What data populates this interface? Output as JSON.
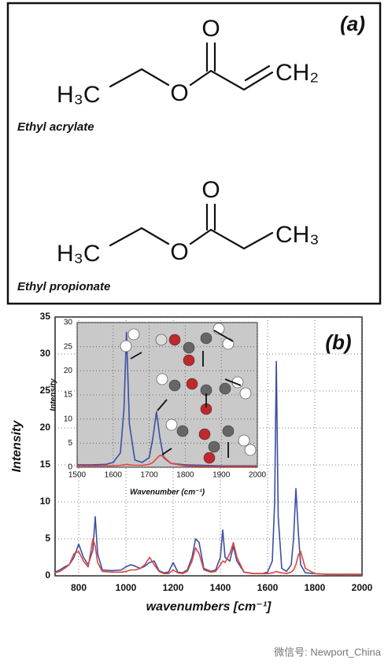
{
  "panel_a": {
    "label": "(a)",
    "molecules": [
      {
        "left": "H₃C",
        "ester_oxygen": "O",
        "carbonyl_oxygen": "O",
        "right": "CH₂",
        "name": "Ethyl acrylate"
      },
      {
        "left": "H₃C",
        "ester_oxygen": "O",
        "carbonyl_oxygen": "O",
        "right": "CH₃",
        "name": "Ethyl propionate"
      }
    ]
  },
  "chart_data": [
    {
      "type": "line",
      "panel_label": "(b)",
      "x_label": "wavenumbers [cm⁻¹]",
      "y_label": "Intensity",
      "x": [
        700,
        720,
        740,
        760,
        780,
        800,
        820,
        840,
        860,
        870,
        880,
        900,
        940,
        980,
        1000,
        1020,
        1040,
        1060,
        1080,
        1100,
        1120,
        1140,
        1160,
        1180,
        1200,
        1220,
        1240,
        1260,
        1280,
        1295,
        1310,
        1330,
        1360,
        1380,
        1400,
        1410,
        1420,
        1440,
        1455,
        1470,
        1500,
        1540,
        1580,
        1600,
        1620,
        1630,
        1637,
        1645,
        1660,
        1680,
        1700,
        1710,
        1720,
        1730,
        1740,
        1760,
        1800,
        1850,
        1900,
        1950,
        2000
      ],
      "series": [
        {
          "color": "#3b4fa3",
          "values": [
            0.5,
            0.8,
            1.2,
            1.5,
            2.5,
            4.3,
            2.5,
            1.5,
            3.5,
            8,
            3,
            0.8,
            0.7,
            0.8,
            1.2,
            1.5,
            1.3,
            1.0,
            1.3,
            1.8,
            2.0,
            0.7,
            0.4,
            0.5,
            1.8,
            0.5,
            0.4,
            0.8,
            2.5,
            5,
            4.5,
            1.0,
            0.6,
            0.8,
            2.5,
            6.2,
            2.5,
            2.0,
            4.0,
            2.0,
            0.5,
            0.3,
            0.3,
            0.5,
            2,
            10,
            29,
            8,
            1,
            0.6,
            1.5,
            5,
            11.8,
            6,
            1.5,
            0.4,
            0.3,
            0.2,
            0.2,
            0.2,
            0.2
          ]
        },
        {
          "color": "#e0453c",
          "values": [
            0.4,
            0.6,
            1.0,
            1.5,
            3.0,
            3.3,
            2.0,
            1.2,
            5.0,
            4.0,
            1.8,
            0.6,
            0.5,
            0.5,
            0.6,
            0.8,
            0.8,
            1.0,
            1.5,
            2.5,
            1.5,
            0.6,
            0.3,
            0.3,
            0.8,
            0.4,
            0.3,
            0.6,
            2.0,
            3.8,
            3.0,
            0.8,
            0.5,
            0.6,
            1.5,
            2.0,
            1.8,
            3.0,
            4.5,
            2.5,
            0.5,
            0.3,
            0.3,
            0.3,
            0.4,
            0.5,
            0.6,
            0.5,
            0.4,
            0.3,
            0.5,
            0.8,
            1.5,
            2.8,
            3.3,
            1.0,
            0.3,
            0.2,
            0.2,
            0.2,
            0.2
          ]
        }
      ],
      "xlim": [
        700,
        2000
      ],
      "xticks": [
        800,
        1000,
        1200,
        1400,
        1600,
        1800,
        2000
      ],
      "ylim": [
        0,
        35
      ],
      "yticks": [
        0,
        5,
        10,
        15,
        20,
        25,
        30,
        35
      ],
      "grid": true
    },
    {
      "type": "line",
      "x_label": "Wavenumber (cm⁻¹)",
      "y_label": "Intensity",
      "x": [
        1500,
        1540,
        1580,
        1600,
        1620,
        1630,
        1637,
        1645,
        1660,
        1680,
        1700,
        1710,
        1720,
        1730,
        1740,
        1760,
        1800,
        1850,
        1900,
        1950,
        2000
      ],
      "series": [
        {
          "color": "#3b4fa3",
          "values": [
            0.5,
            0.5,
            0.6,
            1,
            3,
            12,
            28,
            9,
            1.5,
            1,
            2,
            6,
            11.5,
            6,
            2,
            0.8,
            0.5,
            0.4,
            0.3,
            0.3,
            0.3
          ]
        },
        {
          "color": "#e0453c",
          "values": [
            0.3,
            0.3,
            0.3,
            0.3,
            0.4,
            0.5,
            0.6,
            0.5,
            0.4,
            0.4,
            0.6,
            1,
            1.8,
            2.5,
            2.2,
            0.8,
            0.3,
            0.2,
            0.2,
            0.2,
            0.2
          ]
        }
      ],
      "xlim": [
        1500,
        2000
      ],
      "xticks": [
        1500,
        1600,
        1700,
        1800,
        1900,
        2000
      ],
      "ylim": [
        0,
        30
      ],
      "yticks": [
        0,
        5,
        10,
        15,
        20,
        25,
        30
      ],
      "grid": true
    }
  ],
  "watermark": "微信号: Newport_China"
}
